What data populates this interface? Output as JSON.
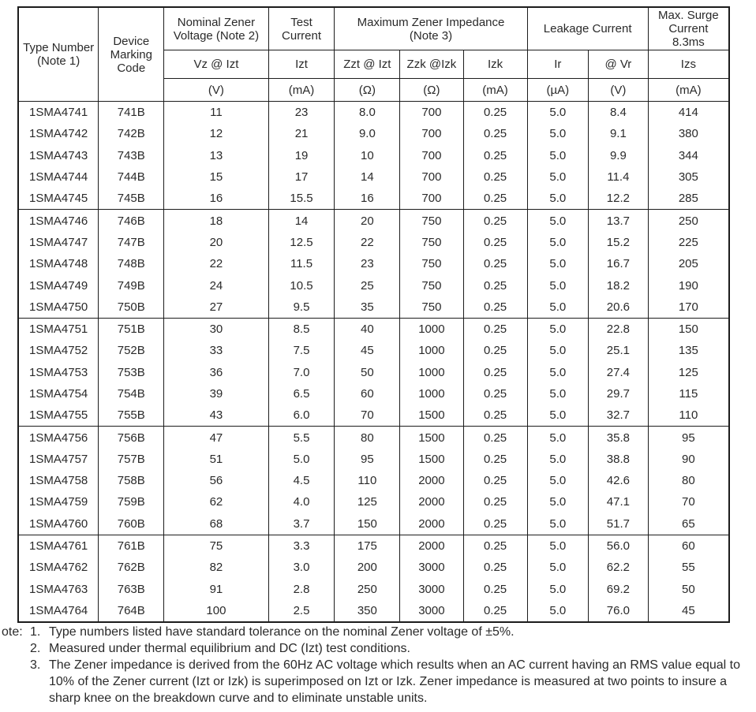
{
  "theme": {
    "paper": "#ffffff",
    "ink": "#2a2a2a",
    "border": "#1c1c1c"
  },
  "table": {
    "header": {
      "type_number": "Type Number\n(Note 1)",
      "device_marking": "Device\nMarking\nCode",
      "nominal_zener": "Nominal Zener\nVoltage (Note 2)",
      "test_current": "Test\nCurrent",
      "max_impedance": "Maximum Zener Impedance\n(Note 3)",
      "leakage": "Leakage Current",
      "max_surge": "Max. Surge\nCurrent\n8.3ms"
    },
    "symbols": {
      "vz": "Vz @ Izt",
      "izt": "Izt",
      "zzt": "Zzt @ Izt",
      "zzk": "Zzk @Izk",
      "izk": "Izk",
      "ir": "Ir",
      "vr": "@ Vr",
      "izs": "Izs"
    },
    "units": {
      "vz": "(V)",
      "izt": "(mA)",
      "zzt": "(Ω)",
      "zzk": "(Ω)",
      "izk": "(mA)",
      "ir": "(µA)",
      "vr": "(V)",
      "izs": "(mA)"
    },
    "groups": [
      [
        [
          "1SMA4741",
          "741B",
          "11",
          "23",
          "8.0",
          "700",
          "0.25",
          "5.0",
          "8.4",
          "414"
        ],
        [
          "1SMA4742",
          "742B",
          "12",
          "21",
          "9.0",
          "700",
          "0.25",
          "5.0",
          "9.1",
          "380"
        ],
        [
          "1SMA4743",
          "743B",
          "13",
          "19",
          "10",
          "700",
          "0.25",
          "5.0",
          "9.9",
          "344"
        ],
        [
          "1SMA4744",
          "744B",
          "15",
          "17",
          "14",
          "700",
          "0.25",
          "5.0",
          "11.4",
          "305"
        ],
        [
          "1SMA4745",
          "745B",
          "16",
          "15.5",
          "16",
          "700",
          "0.25",
          "5.0",
          "12.2",
          "285"
        ]
      ],
      [
        [
          "1SMA4746",
          "746B",
          "18",
          "14",
          "20",
          "750",
          "0.25",
          "5.0",
          "13.7",
          "250"
        ],
        [
          "1SMA4747",
          "747B",
          "20",
          "12.5",
          "22",
          "750",
          "0.25",
          "5.0",
          "15.2",
          "225"
        ],
        [
          "1SMA4748",
          "748B",
          "22",
          "11.5",
          "23",
          "750",
          "0.25",
          "5.0",
          "16.7",
          "205"
        ],
        [
          "1SMA4749",
          "749B",
          "24",
          "10.5",
          "25",
          "750",
          "0.25",
          "5.0",
          "18.2",
          "190"
        ],
        [
          "1SMA4750",
          "750B",
          "27",
          "9.5",
          "35",
          "750",
          "0.25",
          "5.0",
          "20.6",
          "170"
        ]
      ],
      [
        [
          "1SMA4751",
          "751B",
          "30",
          "8.5",
          "40",
          "1000",
          "0.25",
          "5.0",
          "22.8",
          "150"
        ],
        [
          "1SMA4752",
          "752B",
          "33",
          "7.5",
          "45",
          "1000",
          "0.25",
          "5.0",
          "25.1",
          "135"
        ],
        [
          "1SMA4753",
          "753B",
          "36",
          "7.0",
          "50",
          "1000",
          "0.25",
          "5.0",
          "27.4",
          "125"
        ],
        [
          "1SMA4754",
          "754B",
          "39",
          "6.5",
          "60",
          "1000",
          "0.25",
          "5.0",
          "29.7",
          "115"
        ],
        [
          "1SMA4755",
          "755B",
          "43",
          "6.0",
          "70",
          "1500",
          "0.25",
          "5.0",
          "32.7",
          "110"
        ]
      ],
      [
        [
          "1SMA4756",
          "756B",
          "47",
          "5.5",
          "80",
          "1500",
          "0.25",
          "5.0",
          "35.8",
          "95"
        ],
        [
          "1SMA4757",
          "757B",
          "51",
          "5.0",
          "95",
          "1500",
          "0.25",
          "5.0",
          "38.8",
          "90"
        ],
        [
          "1SMA4758",
          "758B",
          "56",
          "4.5",
          "110",
          "2000",
          "0.25",
          "5.0",
          "42.6",
          "80"
        ],
        [
          "1SMA4759",
          "759B",
          "62",
          "4.0",
          "125",
          "2000",
          "0.25",
          "5.0",
          "47.1",
          "70"
        ],
        [
          "1SMA4760",
          "760B",
          "68",
          "3.7",
          "150",
          "2000",
          "0.25",
          "5.0",
          "51.7",
          "65"
        ]
      ],
      [
        [
          "1SMA4761",
          "761B",
          "75",
          "3.3",
          "175",
          "2000",
          "0.25",
          "5.0",
          "56.0",
          "60"
        ],
        [
          "1SMA4762",
          "762B",
          "82",
          "3.0",
          "200",
          "3000",
          "0.25",
          "5.0",
          "62.2",
          "55"
        ],
        [
          "1SMA4763",
          "763B",
          "91",
          "2.8",
          "250",
          "3000",
          "0.25",
          "5.0",
          "69.2",
          "50"
        ],
        [
          "1SMA4764",
          "764B",
          "100",
          "2.5",
          "350",
          "3000",
          "0.25",
          "5.0",
          "76.0",
          "45"
        ]
      ]
    ]
  },
  "notes": {
    "label": "ote:",
    "items": [
      {
        "num": "1.",
        "text": "Type numbers listed have standard tolerance on the nominal Zener voltage of ±5%."
      },
      {
        "num": "2.",
        "text": "Measured under thermal equilibrium and DC (Izt) test conditions."
      },
      {
        "num": "3.",
        "text": "The Zener impedance is derived from the 60Hz AC voltage which results when an AC current having an RMS value equal to 10% of the Zener current (Izt or Izk) is superimposed on Izt or Izk. Zener impedance is measured at two points to insure a sharp knee on the breakdown curve and to eliminate unstable units."
      }
    ]
  }
}
